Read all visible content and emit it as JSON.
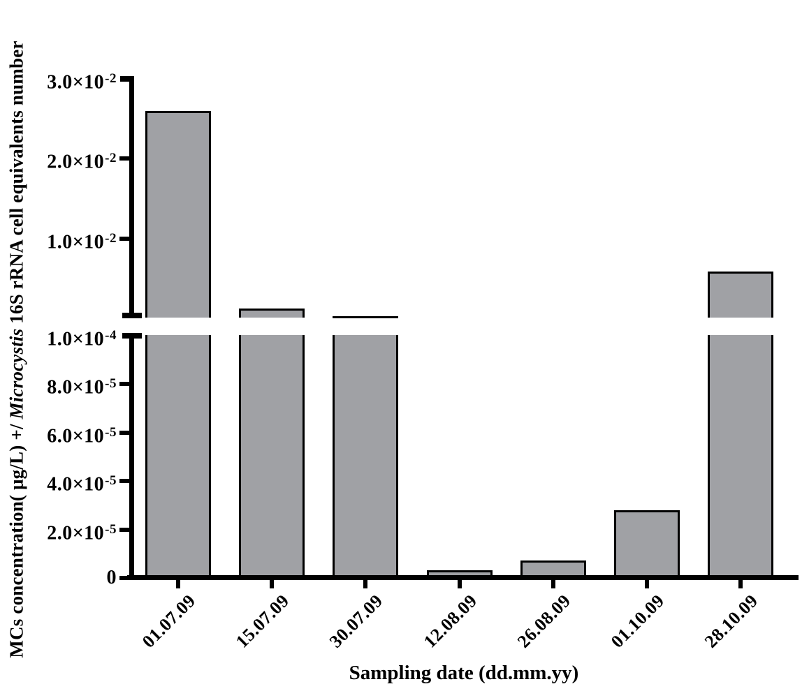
{
  "figure": {
    "background": "#ffffff",
    "text_color": "#000000"
  },
  "chart_data": {
    "type": "bar",
    "title": "",
    "xlabel": "Sampling date (dd.mm.yy)",
    "ylabel_prefix": "MCs concentration( μg/L) +/ ",
    "ylabel_italic": "Microcystis",
    "ylabel_suffix": " 16S rRNA cell equivalents number",
    "categories": [
      "01.07.09",
      "15.07.09",
      "30.07.09",
      "12.08.09",
      "26.08.09",
      "01.10.09",
      "28.10.09"
    ],
    "values": [
      0.026,
      0.0012,
      0.00028,
      3.2e-06,
      7.3e-06,
      2.8e-05,
      0.0059
    ],
    "bar_color": "#a0a1a5",
    "bar_border_color": "#000000",
    "axis_color": "#000000",
    "grid": false,
    "legend": null,
    "broken_y_axis": {
      "lower_segment": {
        "min": 0,
        "max": 0.0001,
        "ticks": [
          {
            "value": 0.0001,
            "mantissa": "1.0×10",
            "exponent": "-4",
            "endcap": true
          },
          {
            "value": 8e-05,
            "mantissa": "8.0×10",
            "exponent": "-5",
            "endcap": false
          },
          {
            "value": 6e-05,
            "mantissa": "6.0×10",
            "exponent": "-5",
            "endcap": false
          },
          {
            "value": 4e-05,
            "mantissa": "4.0×10",
            "exponent": "-5",
            "endcap": false
          },
          {
            "value": 2e-05,
            "mantissa": "2.0×10",
            "exponent": "-5",
            "endcap": false
          },
          {
            "value": 0,
            "mantissa": "0",
            "exponent": "",
            "endcap": false
          }
        ]
      },
      "upper_segment": {
        "min": 0.0001,
        "max": 0.03,
        "ticks": [
          {
            "value": 0.03,
            "mantissa": "3.0×10",
            "exponent": "-2",
            "endcap": true
          },
          {
            "value": 0.02,
            "mantissa": "2.0×10",
            "exponent": "-2",
            "endcap": false
          },
          {
            "value": 0.01,
            "mantissa": "1.0×10",
            "exponent": "-2",
            "endcap": false
          }
        ]
      }
    }
  }
}
